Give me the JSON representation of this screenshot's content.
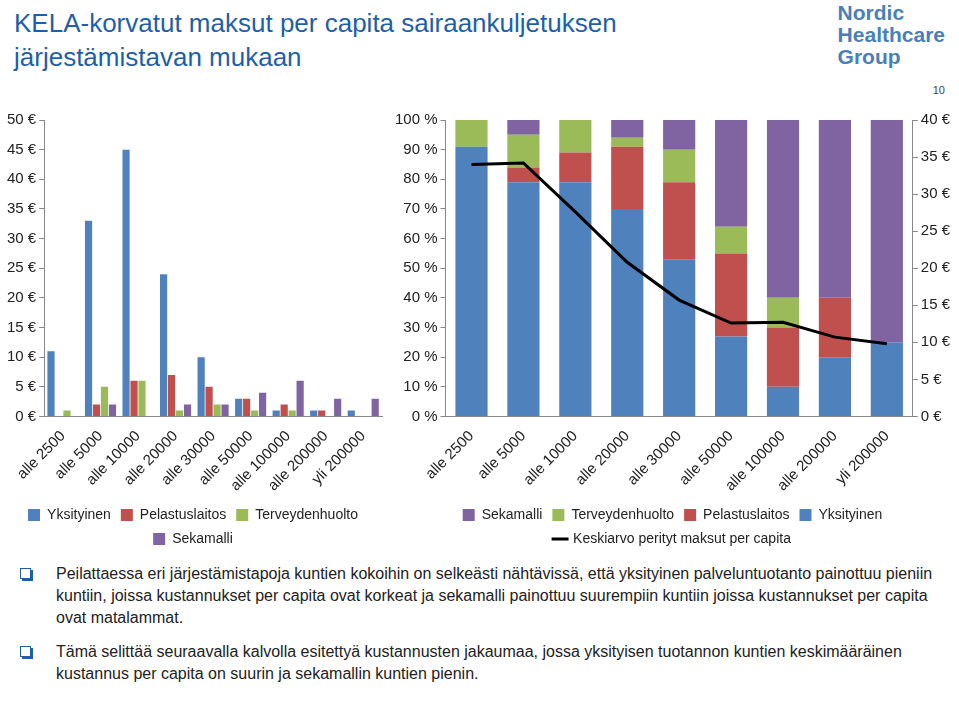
{
  "title": [
    "KELA-korvatut maksut per capita sairaankuljetuksen",
    "järjestämistavan mukaan"
  ],
  "logo": [
    "Nordic",
    "Healthcare",
    "Group"
  ],
  "page_number": "10",
  "chart_data": [
    {
      "type": "bar",
      "categories": [
        "alle 2500",
        "alle 5000",
        "alle 10000",
        "alle 20000",
        "alle 30000",
        "alle 50000",
        "alle 100000",
        "alle 200000",
        "yli 200000"
      ],
      "series": [
        {
          "name": "Yksityinen",
          "color": "#4f81bd",
          "values": [
            11,
            33,
            45,
            24,
            10,
            3,
            1,
            1,
            1
          ]
        },
        {
          "name": "Pelastuslaitos",
          "color": "#c0504d",
          "values": [
            null,
            2,
            6,
            7,
            5,
            3,
            2,
            1,
            null
          ]
        },
        {
          "name": "Terveydenhuolto",
          "color": "#9bbb59",
          "values": [
            1,
            5,
            6,
            1,
            2,
            1,
            1,
            null,
            null
          ]
        },
        {
          "name": "Sekamalli",
          "color": "#8064a2",
          "values": [
            null,
            2,
            null,
            2,
            2,
            4,
            6,
            3,
            3
          ]
        }
      ],
      "ylim": [
        0,
        50
      ],
      "yticks": [
        {
          "value": 0,
          "label": "0 €"
        },
        {
          "value": 5,
          "label": "5 €"
        },
        {
          "value": 10,
          "label": "10 €"
        },
        {
          "value": 15,
          "label": "15 €"
        },
        {
          "value": 20,
          "label": "20 €"
        },
        {
          "value": 25,
          "label": "25 €"
        },
        {
          "value": 30,
          "label": "30 €"
        },
        {
          "value": 35,
          "label": "35 €"
        },
        {
          "value": 40,
          "label": "40 €"
        },
        {
          "value": 45,
          "label": "45 €"
        },
        {
          "value": 50,
          "label": "50 €"
        }
      ],
      "grid": false,
      "legend": "bottom"
    },
    {
      "type": "bar",
      "stacked": true,
      "categories": [
        "alle 2500",
        "alle 5000",
        "alle 10000",
        "alle 20000",
        "alle 30000",
        "alle 50000",
        "alle 100000",
        "alle 200000",
        "yli 200000"
      ],
      "series": [
        {
          "name": "Yksityinen",
          "color": "#4f81bd",
          "values": [
            91,
            79,
            79,
            70,
            53,
            27,
            10,
            20,
            25
          ]
        },
        {
          "name": "Pelastuslaitos",
          "color": "#c0504d",
          "values": [
            0,
            5,
            10,
            21,
            26,
            28,
            20,
            20,
            0
          ]
        },
        {
          "name": "Terveydenhuolto",
          "color": "#9bbb59",
          "values": [
            9,
            11,
            11,
            3,
            11,
            9,
            10,
            0,
            0
          ]
        },
        {
          "name": "Sekamalli",
          "color": "#8064a2",
          "values": [
            0,
            5,
            0,
            6,
            10,
            36,
            60,
            60,
            75
          ]
        },
        {
          "name": "Keskiarvo perityt maksut per capita",
          "type": "line",
          "axis": "y2",
          "color": "#000000",
          "values": [
            34,
            34.2,
            27.6,
            20.8,
            15.7,
            12.6,
            12.7,
            10.7,
            9.8
          ]
        }
      ],
      "ylim": [
        0,
        100
      ],
      "yticks": [
        {
          "value": 0,
          "label": "0 %"
        },
        {
          "value": 10,
          "label": "10 %"
        },
        {
          "value": 20,
          "label": "20 %"
        },
        {
          "value": 30,
          "label": "30 %"
        },
        {
          "value": 40,
          "label": "40 %"
        },
        {
          "value": 50,
          "label": "50 %"
        },
        {
          "value": 60,
          "label": "60 %"
        },
        {
          "value": 70,
          "label": "70 %"
        },
        {
          "value": 80,
          "label": "80 %"
        },
        {
          "value": 90,
          "label": "90 %"
        },
        {
          "value": 100,
          "label": "100 %"
        }
      ],
      "y2lim": [
        0,
        40
      ],
      "y2ticks": [
        {
          "value": 0,
          "label": "0 €"
        },
        {
          "value": 5,
          "label": "5 €"
        },
        {
          "value": 10,
          "label": "10 €"
        },
        {
          "value": 15,
          "label": "15 €"
        },
        {
          "value": 20,
          "label": "20 €"
        },
        {
          "value": 25,
          "label": "25 €"
        },
        {
          "value": 30,
          "label": "30 €"
        },
        {
          "value": 35,
          "label": "35 €"
        },
        {
          "value": 40,
          "label": "40 €"
        }
      ],
      "grid": false,
      "legend": "bottom"
    }
  ],
  "bullets": [
    "Peilattaessa eri järjestämistapoja kuntien kokoihin on selkeästi nähtävissä, että yksityinen palveluntuotanto painottuu pieniin kuntiin, joissa kustannukset per capita ovat korkeat ja sekamalli painottuu suurempiin kuntiin joissa kustannukset per capita ovat matalammat.",
    "Tämä selittää seuraavalla kalvolla esitettyä kustannusten jakaumaa, jossa yksityisen tuotannon kuntien keskimääräinen kustannus per capita on suurin ja sekamallin kuntien pienin."
  ]
}
